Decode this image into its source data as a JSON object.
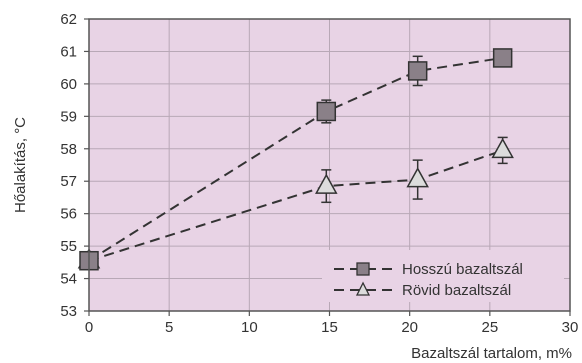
{
  "chart_data": {
    "type": "line",
    "title": "",
    "xlabel": "Bazaltszál tartalom, m%",
    "ylabel": "Hőalakítás, °C",
    "xlim": [
      0,
      30
    ],
    "ylim": [
      53,
      62
    ],
    "x_ticks": [
      "0",
      "5",
      "10",
      "15",
      "20",
      "25",
      "30"
    ],
    "y_ticks": [
      "53",
      "54",
      "55",
      "56",
      "57",
      "58",
      "59",
      "60",
      "61",
      "62"
    ],
    "grid": true,
    "legend_position": "bottom-right",
    "colors": {
      "plot_background": "#e8d3e5",
      "grid": "#b8a8b6",
      "series_line": "#333333",
      "square_marker_fill": "#8a8088",
      "triangle_marker_fill": "#dcdcdc"
    },
    "series": [
      {
        "name": "Hosszú bazaltszál",
        "marker": "square",
        "points": [
          {
            "x": 0,
            "y": 54.55,
            "err": 0
          },
          {
            "x": 14.8,
            "y": 59.15,
            "err": 0.35
          },
          {
            "x": 20.5,
            "y": 60.4,
            "err": 0.45
          },
          {
            "x": 25.8,
            "y": 60.8,
            "err": 0
          }
        ]
      },
      {
        "name": "Rövid bazaltszál",
        "marker": "triangle",
        "points": [
          {
            "x": 0,
            "y": 54.55,
            "err": 0
          },
          {
            "x": 14.8,
            "y": 56.85,
            "err": 0.5
          },
          {
            "x": 20.5,
            "y": 57.05,
            "err": 0.6
          },
          {
            "x": 25.8,
            "y": 57.95,
            "err": 0.4
          }
        ]
      }
    ]
  }
}
